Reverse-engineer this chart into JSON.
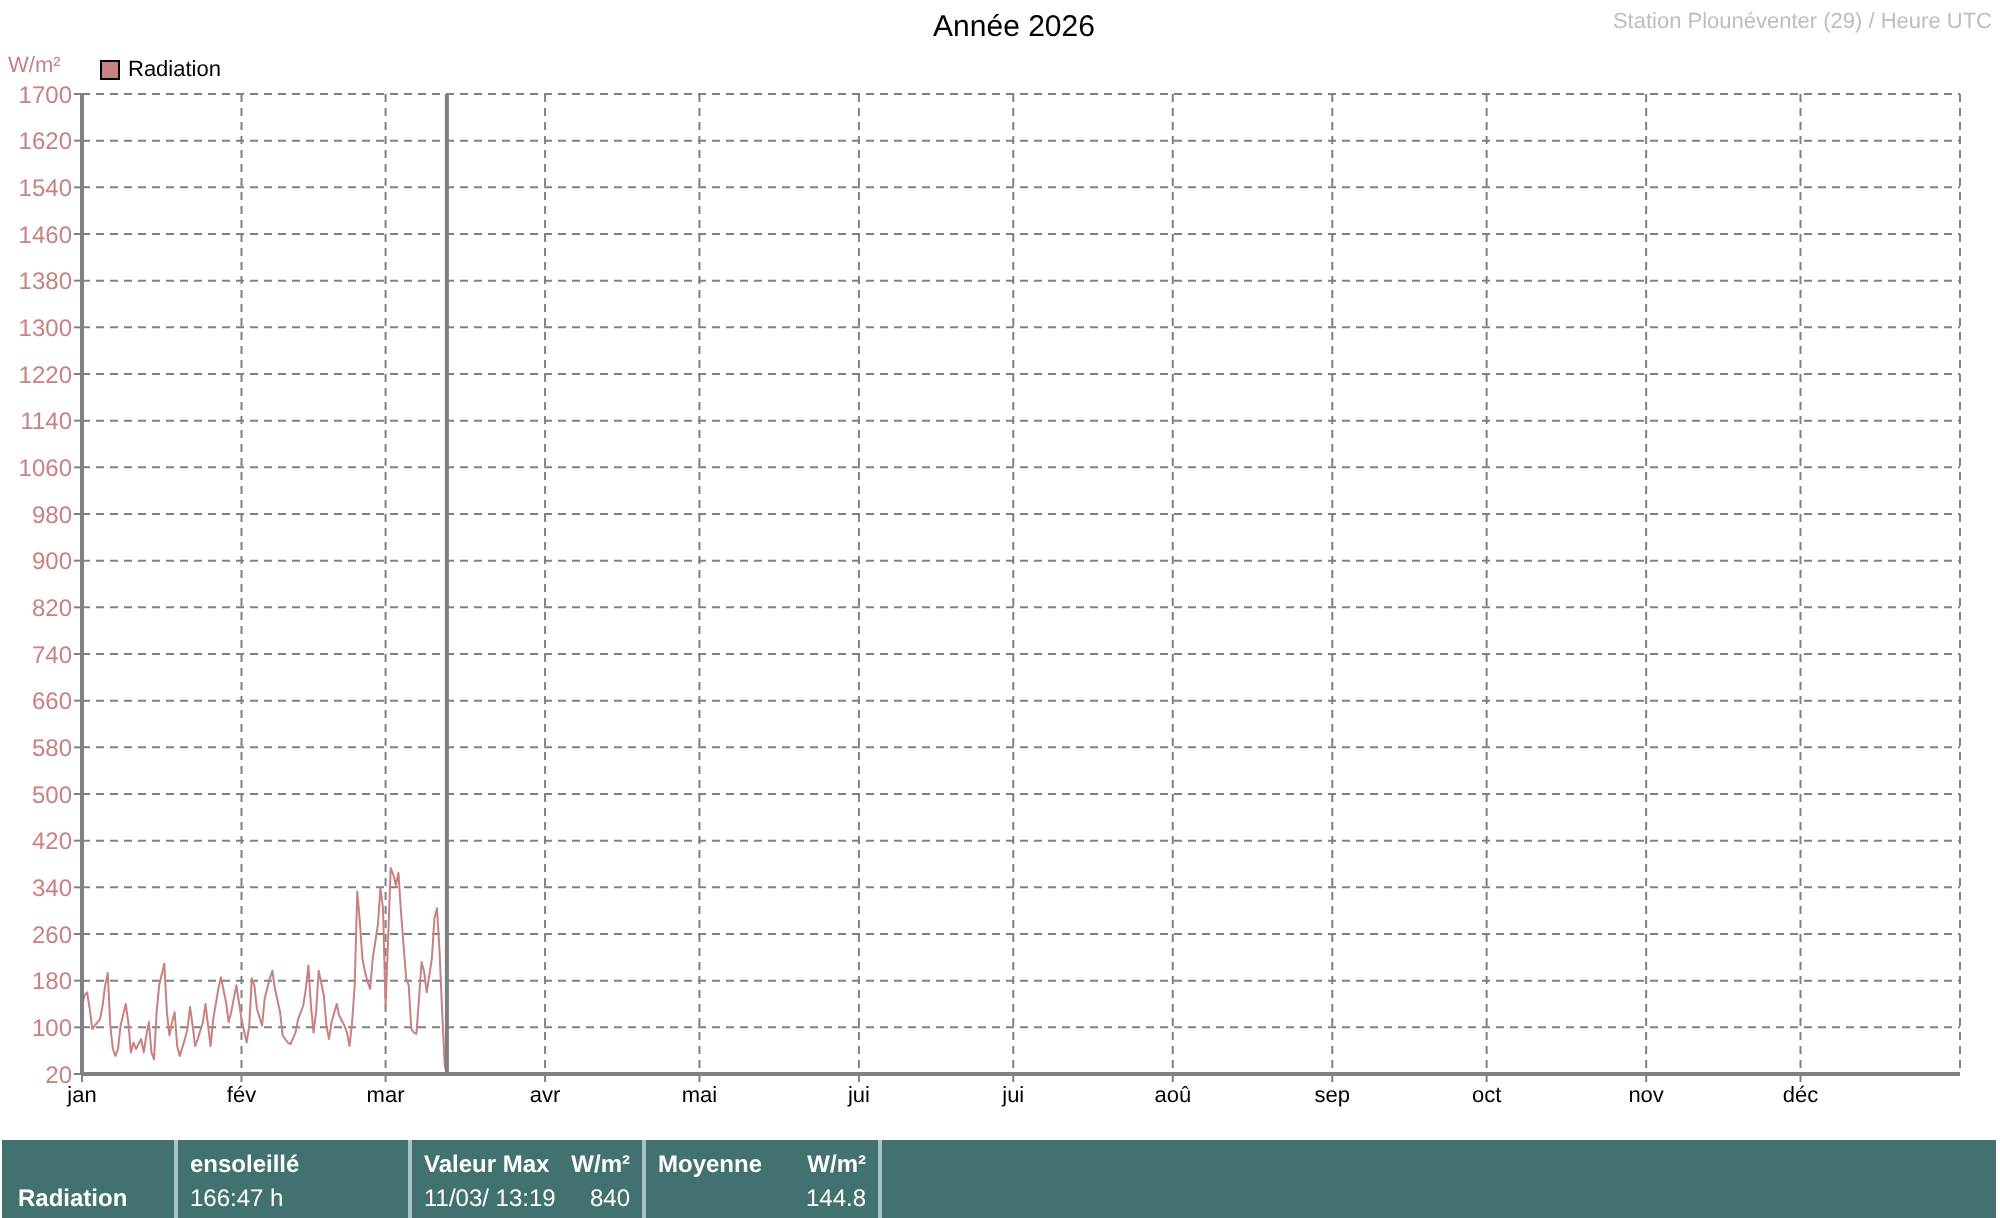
{
  "chart_data": {
    "type": "line",
    "title": "Année 2026",
    "ylabel": "W/m²",
    "annotations": [
      "Station Plounéventer (29) / Heure UTC",
      "Radiation",
      "ensoleillé",
      "166:47 h",
      "Valeur Max",
      "W/m²",
      "11/03/ 13:19",
      "840",
      "Moyenne",
      "W/m²",
      "144.8"
    ],
    "x": [
      "2026-01-01T00:00",
      "2026-01-01T12:00",
      "2026-01-02T00:00",
      "2026-01-02T12:00",
      "2026-01-03T00:00",
      "2026-01-03T12:00",
      "2026-01-04T12:00",
      "2026-01-05T00:00",
      "2026-01-05T12:00",
      "2026-01-06T00:00",
      "2026-01-06T12:00",
      "2026-01-07T00:00",
      "2026-01-07T12:00",
      "2026-01-08T00:00",
      "2026-01-08T12:00",
      "2026-01-09T12:00",
      "2026-01-10T00:00",
      "2026-01-10T12:00",
      "2026-01-11T00:00",
      "2026-01-11T12:00",
      "2026-01-12T12:00",
      "2026-01-13T00:00",
      "2026-01-13T12:00",
      "2026-01-14T00:00",
      "2026-01-14T12:00",
      "2026-01-15T00:00",
      "2026-01-15T12:00",
      "2026-01-16T00:00",
      "2026-01-17T00:00",
      "2026-01-17T12:00",
      "2026-01-18T00:00",
      "2026-01-18T12:00",
      "2026-01-19T00:00",
      "2026-01-19T12:00",
      "2026-01-20T00:00",
      "2026-01-21T00:00",
      "2026-01-21T12:00",
      "2026-01-22T00:00",
      "2026-01-22T12:00",
      "2026-01-23T00:00",
      "2026-01-23T12:00",
      "2026-01-24T12:00",
      "2026-01-25T00:00",
      "2026-01-25T12:00",
      "2026-01-26T00:00",
      "2026-01-26T12:00",
      "2026-01-27T12:00",
      "2026-01-28T00:00",
      "2026-01-29T00:00",
      "2026-01-29T12:00",
      "2026-01-30T00:00",
      "2026-01-31T00:00",
      "2026-01-31T12:00",
      "2026-02-01T00:00",
      "2026-02-02T00:00",
      "2026-02-02T12:00",
      "2026-02-03T00:00",
      "2026-02-03T12:00",
      "2026-02-04T00:00",
      "2026-02-05T00:00",
      "2026-02-05T12:00",
      "2026-02-06T12:00",
      "2026-02-07T00:00",
      "2026-02-07T12:00",
      "2026-02-08T12:00",
      "2026-02-09T00:00",
      "2026-02-10T00:00",
      "2026-02-10T12:00",
      "2026-02-11T12:00",
      "2026-02-12T00:00",
      "2026-02-13T00:00",
      "2026-02-13T12:00",
      "2026-02-14T00:00",
      "2026-02-14T12:00",
      "2026-02-15T00:00",
      "2026-02-15T12:00",
      "2026-02-16T00:00",
      "2026-02-17T00:00",
      "2026-02-17T12:00",
      "2026-02-18T00:00",
      "2026-02-18T12:00",
      "2026-02-19T12:00",
      "2026-02-20T00:00",
      "2026-02-21T00:00",
      "2026-02-21T12:00",
      "2026-02-22T00:00",
      "2026-02-22T12:00",
      "2026-02-23T00:00",
      "2026-02-23T12:00",
      "2026-02-24T00:00",
      "2026-02-24T12:00",
      "2026-02-25T00:00",
      "2026-02-25T12:00",
      "2026-02-26T00:00",
      "2026-02-26T12:00",
      "2026-02-27T12:00",
      "2026-02-28T00:00",
      "2026-02-28T12:00",
      "2026-03-01T00:00",
      "2026-03-01T12:00",
      "2026-03-02T00:00",
      "2026-03-02T12:00",
      "2026-03-03T00:00",
      "2026-03-03T12:00",
      "2026-03-04T00:00",
      "2026-03-05T00:00",
      "2026-03-05T12:00",
      "2026-03-06T00:00",
      "2026-03-06T12:00",
      "2026-03-07T00:00",
      "2026-03-07T12:00",
      "2026-03-08T00:00",
      "2026-03-08T12:00",
      "2026-03-09T00:00",
      "2026-03-09T12:00",
      "2026-03-10T00:00",
      "2026-03-10T12:00",
      "2026-03-11T00:00",
      "2026-03-11T12:00",
      "2026-03-12T00:00",
      "2026-03-12T12:00",
      "2026-03-12T22:00"
    ],
    "series": [
      {
        "name": "Radiation",
        "color": "#c88080",
        "values": [
          137,
          155,
          160,
          132,
          97,
          103,
          114,
          137,
          172,
          193,
          103,
          63,
          51,
          63,
          103,
          140,
          109,
          57,
          74,
          63,
          80,
          57,
          86,
          109,
          57,
          45,
          126,
          172,
          209,
          126,
          86,
          109,
          126,
          68,
          51,
          80,
          97,
          135,
          103,
          68,
          80,
          109,
          140,
          103,
          68,
          114,
          166,
          186,
          143,
          109,
          126,
          172,
          143,
          114,
          74,
          103,
          184,
          172,
          132,
          103,
          149,
          184,
          197,
          166,
          126,
          86,
          74,
          71,
          91,
          114,
          137,
          166,
          206,
          137,
          91,
          126,
          197,
          155,
          103,
          80,
          109,
          140,
          120,
          103,
          91,
          68,
          109,
          172,
          333,
          281,
          218,
          195,
          178,
          166,
          218,
          275,
          339,
          304,
          137,
          252,
          373,
          362,
          344,
          365,
          298,
          184,
          172,
          97,
          91,
          89,
          149,
          212,
          195,
          160,
          189,
          218,
          287,
          304,
          229,
          126,
          34,
          22
        ]
      }
    ],
    "xlim": [
      "2026-01-01",
      "2027-01-01"
    ],
    "xticks": [
      {
        "value": "2026-01-01",
        "label": "jan"
      },
      {
        "value": "2026-02-01",
        "label": "fév"
      },
      {
        "value": "2026-03-01",
        "label": "mar"
      },
      {
        "value": "2026-04-01",
        "label": "avr"
      },
      {
        "value": "2026-05-01",
        "label": "mai"
      },
      {
        "value": "2026-06-01",
        "label": "jui"
      },
      {
        "value": "2026-07-01",
        "label": "jui"
      },
      {
        "value": "2026-08-01",
        "label": "aoû"
      },
      {
        "value": "2026-09-01",
        "label": "sep"
      },
      {
        "value": "2026-10-01",
        "label": "oct"
      },
      {
        "value": "2026-11-01",
        "label": "nov"
      },
      {
        "value": "2026-12-01",
        "label": "déc"
      }
    ],
    "ylim": [
      20,
      1700
    ],
    "yticks": [
      20,
      100,
      180,
      260,
      340,
      420,
      500,
      580,
      660,
      740,
      820,
      900,
      980,
      1060,
      1140,
      1220,
      1300,
      1380,
      1460,
      1540,
      1620,
      1700
    ],
    "ref_lines": [
      {
        "axis": "x",
        "value": "2026-03-12T22:00",
        "color": "#7f7f7f"
      }
    ],
    "grid": true,
    "legend": "top left"
  }
}
